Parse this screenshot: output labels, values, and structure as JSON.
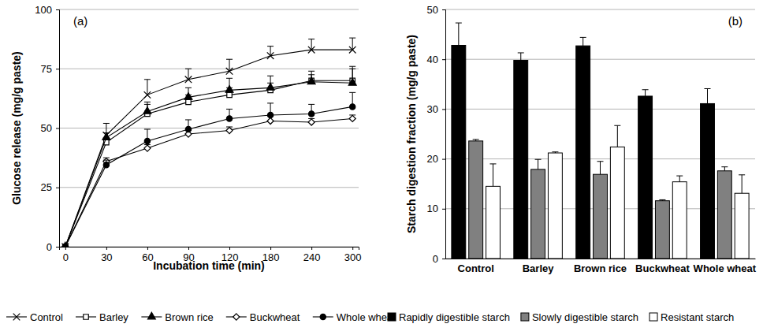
{
  "chart_data": [
    {
      "type": "line",
      "annotations": [
        "(a)"
      ],
      "x_label": "Incubation time (min)",
      "y_label": "Glucose release (mg/g paste)",
      "categories": [
        "0",
        "30",
        "60",
        "90",
        "120",
        "180",
        "240",
        "300"
      ],
      "ylim": [
        0,
        100
      ],
      "yticks": [
        0,
        25,
        50,
        75,
        100
      ],
      "grid": true,
      "series": [
        {
          "name": "Control",
          "color": "#000000",
          "marker": "x",
          "values": [
            0,
            47,
            64,
            70.5,
            74,
            80.5,
            83,
            83
          ],
          "errors": [
            null,
            5,
            6.5,
            4.5,
            5,
            4,
            4.5,
            5
          ]
        },
        {
          "name": "Barley",
          "color": "#000000",
          "marker": "open-square",
          "values": [
            0,
            44,
            56,
            61,
            64,
            66,
            70,
            70
          ],
          "errors": [
            null,
            2,
            4,
            3,
            3,
            3,
            4,
            6
          ]
        },
        {
          "name": "Brown rice",
          "color": "#000000",
          "marker": "triangle",
          "values": [
            0,
            46,
            57,
            63,
            66,
            67,
            69.5,
            69
          ],
          "errors": [
            null,
            2,
            4,
            4,
            5,
            5,
            3,
            6
          ]
        },
        {
          "name": "Buckwheat",
          "color": "#000000",
          "marker": "open-diamond",
          "values": [
            0,
            36,
            41.5,
            47.5,
            49,
            53,
            52.5,
            54
          ],
          "errors": [
            null,
            1.5,
            1.5,
            1.5,
            1.5,
            2,
            1.5,
            1.5
          ]
        },
        {
          "name": "Whole wheat",
          "color": "#000000",
          "marker": "circle",
          "values": [
            0,
            34.5,
            44.5,
            49.5,
            54,
            55.5,
            56,
            59
          ],
          "errors": [
            null,
            2,
            5,
            4,
            4,
            5,
            4,
            6
          ]
        }
      ]
    },
    {
      "type": "bar",
      "annotations": [
        "(b)"
      ],
      "y_label": "Starch digestion fraction (mg/g paste)",
      "categories": [
        "Control",
        "Barley",
        "Brown rice",
        "Buckwheat",
        "Whole wheat"
      ],
      "ylim": [
        0,
        50
      ],
      "yticks": [
        0,
        10,
        20,
        30,
        40,
        50
      ],
      "grid": true,
      "series": [
        {
          "name": "Rapidly digestible starch",
          "color": "#000000",
          "values": [
            42.8,
            39.8,
            42.7,
            32.6,
            31.1
          ],
          "errors": [
            4.5,
            1.5,
            1.7,
            1.3,
            3.0
          ]
        },
        {
          "name": "Slowly digestible starch",
          "color": "#808080",
          "values": [
            23.6,
            17.9,
            16.9,
            11.6,
            17.6
          ],
          "errors": [
            0.3,
            2.0,
            2.6,
            0.2,
            0.8
          ]
        },
        {
          "name": "Resistant starch",
          "color": "#ffffff",
          "values": [
            14.5,
            21.2,
            22.4,
            15.4,
            13.1
          ],
          "errors": [
            4.5,
            0.2,
            4.3,
            1.2,
            3.7
          ]
        }
      ]
    }
  ]
}
